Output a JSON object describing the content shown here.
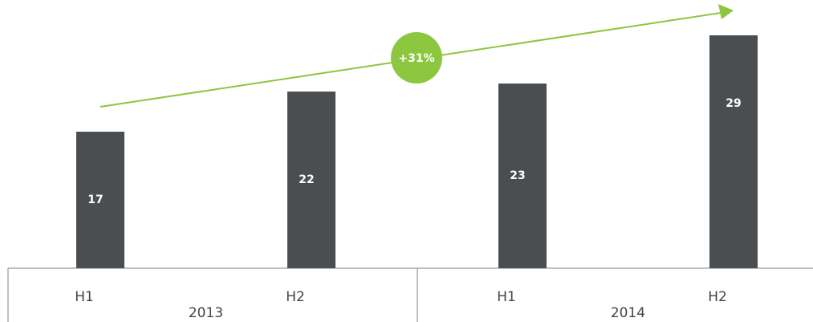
{
  "chart_data": {
    "type": "bar",
    "categories": [
      "H1",
      "H2",
      "H1",
      "H2"
    ],
    "groups": [
      {
        "label": "2013",
        "categories": [
          0,
          1
        ]
      },
      {
        "label": "2014",
        "categories": [
          2,
          3
        ]
      }
    ],
    "values": [
      17,
      22,
      23,
      29
    ],
    "color": "#4a4e51",
    "ylim": [
      0,
      30
    ],
    "annotation": {
      "text": "+31%",
      "color": "#8dc63f"
    }
  }
}
